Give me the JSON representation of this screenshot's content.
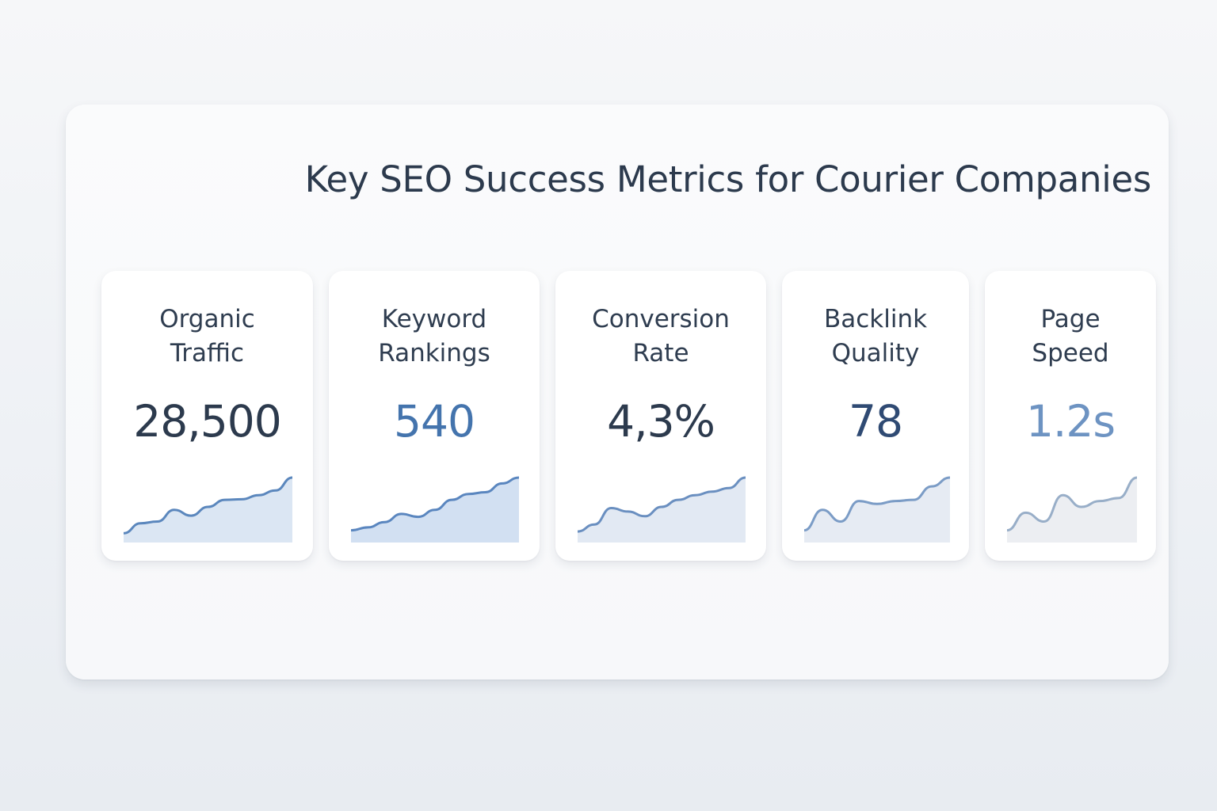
{
  "title": "Key SEO Success Metrics for Courier Companies",
  "colors": {
    "title": "#2c3a4d",
    "label": "#2f3d50"
  },
  "metrics": [
    {
      "label_line1": "Organic",
      "label_line2": "Traffic",
      "value": "28,500",
      "value_color": "#2c3a4d",
      "line_color": "#5b87bd",
      "fill_color": "#dbe6f3",
      "trend": [
        0.05,
        0.22,
        0.25,
        0.45,
        0.35,
        0.5,
        0.62,
        0.63,
        0.7,
        0.78,
        1.0
      ]
    },
    {
      "label_line1": "Keyword",
      "label_line2": "Rankings",
      "value": "540",
      "value_color": "#4474ad",
      "line_color": "#5a86bf",
      "fill_color": "#d2e0f2",
      "trend": [
        0.1,
        0.15,
        0.24,
        0.38,
        0.33,
        0.45,
        0.62,
        0.72,
        0.75,
        0.9,
        1.0
      ]
    },
    {
      "label_line1": "Conversion",
      "label_line2": "Rate",
      "value": "4,3%",
      "value_color": "#2c3a4d",
      "line_color": "#6a8fc0",
      "fill_color": "#e2e9f3",
      "trend": [
        0.08,
        0.2,
        0.48,
        0.42,
        0.34,
        0.5,
        0.62,
        0.7,
        0.76,
        0.82,
        1.0
      ]
    },
    {
      "label_line1": "Backlink",
      "label_line2": "Quality",
      "value": "78",
      "value_color": "#2f4a73",
      "line_color": "#7b9cc6",
      "fill_color": "#e6ebf3",
      "trend": [
        0.1,
        0.45,
        0.25,
        0.6,
        0.55,
        0.6,
        0.62,
        0.85,
        1.0
      ]
    },
    {
      "label_line1": "Page",
      "label_line2": "Speed",
      "value": "1.2s",
      "value_color": "#6d93c2",
      "line_color": "#98aec8",
      "fill_color": "#eceef2",
      "trend": [
        0.1,
        0.4,
        0.25,
        0.7,
        0.5,
        0.6,
        0.65,
        1.0
      ]
    }
  ]
}
